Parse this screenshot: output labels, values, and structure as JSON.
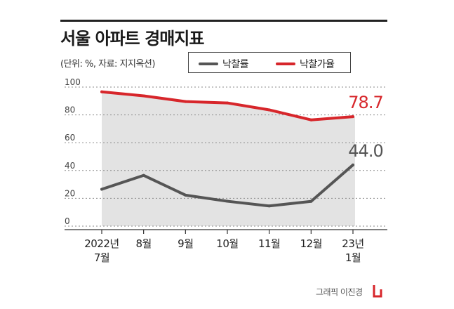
{
  "header": {
    "title": "서울 아파트 경매지표",
    "unit_note": "(단위: %, 자료: 지지옥션)"
  },
  "legend": {
    "items": [
      {
        "label": "낙찰률",
        "color": "#555555"
      },
      {
        "label": "낙찰가율",
        "color": "#d7262b"
      }
    ]
  },
  "footer": {
    "credit": "그래픽 이진경",
    "accent_color": "#d7262b"
  },
  "chart_data": {
    "type": "line",
    "categories": [
      [
        "2022년",
        "7월"
      ],
      [
        "8월"
      ],
      [
        "9월"
      ],
      [
        "10월"
      ],
      [
        "11월"
      ],
      [
        "12월"
      ],
      [
        "23년",
        "1월"
      ]
    ],
    "ylim": [
      0,
      100
    ],
    "yticks": [
      0,
      20,
      40,
      60,
      80,
      100
    ],
    "grid": true,
    "legend_position": "top",
    "series": [
      {
        "name": "낙찰률",
        "color": "#555555",
        "values": [
          26.5,
          36.5,
          22.3,
          17.9,
          14.5,
          17.8,
          44.0
        ],
        "end_label": "44.0"
      },
      {
        "name": "낙찰가율",
        "color": "#d7262b",
        "values": [
          96.6,
          93.7,
          89.6,
          88.6,
          83.6,
          76.4,
          78.7
        ],
        "end_label": "78.7"
      }
    ]
  }
}
